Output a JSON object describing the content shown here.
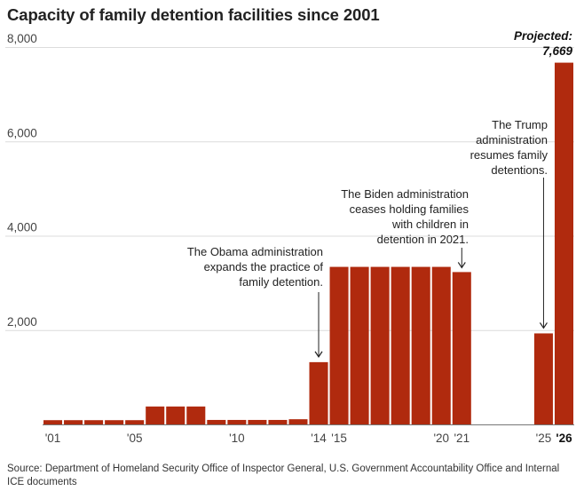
{
  "chart_data": {
    "type": "bar",
    "title": "Capacity of family detention facilities since 2001",
    "xlabel": "",
    "ylabel": "",
    "ylim": [
      0,
      8000
    ],
    "yticks": [
      8000,
      6000,
      4000,
      2000
    ],
    "ytick_labels": [
      "8,000",
      "6,000",
      "4,000",
      "2,000"
    ],
    "categories": [
      "2001",
      "2002",
      "2003",
      "2004",
      "2005",
      "2006",
      "2007",
      "2008",
      "2009",
      "2010",
      "2011",
      "2012",
      "2013",
      "2014",
      "2015",
      "2016",
      "2017",
      "2018",
      "2019",
      "2020",
      "2021",
      "2022",
      "2023",
      "2024",
      "2025",
      "2026"
    ],
    "values": [
      90,
      90,
      90,
      90,
      90,
      380,
      380,
      380,
      95,
      95,
      95,
      95,
      110,
      1320,
      3340,
      3340,
      3340,
      3340,
      3340,
      3340,
      3230,
      0,
      0,
      0,
      1930,
      7669
    ],
    "bar_color": "#b02a0e",
    "xtick_labels": [
      {
        "year": "2001",
        "label": "'01"
      },
      {
        "year": "2005",
        "label": "'05"
      },
      {
        "year": "2010",
        "label": "'10"
      },
      {
        "year": "2014",
        "label": "'14"
      },
      {
        "year": "2015",
        "label": "'15"
      },
      {
        "year": "2020",
        "label": "'20"
      },
      {
        "year": "2021",
        "label": "'21"
      },
      {
        "year": "2025",
        "label": "'25"
      },
      {
        "year": "2026",
        "label": "'26",
        "bold": true
      }
    ],
    "projected": {
      "label": "Projected:",
      "value": "7,669"
    },
    "annotations": [
      {
        "lines": [
          "The Obama administration",
          "expands the practice of",
          "family detention."
        ],
        "year": "2014"
      },
      {
        "lines": [
          "The Biden administration",
          "ceases holding families",
          "with children in",
          "detention in 2021."
        ],
        "year": "2021"
      },
      {
        "lines": [
          "The Trump",
          "administration",
          "resumes family",
          "detentions."
        ],
        "year": "2025"
      }
    ]
  },
  "source": "Source: Department of Homeland Security Office of Inspector General, U.S. Government Accountability Office and Internal ICE documents"
}
